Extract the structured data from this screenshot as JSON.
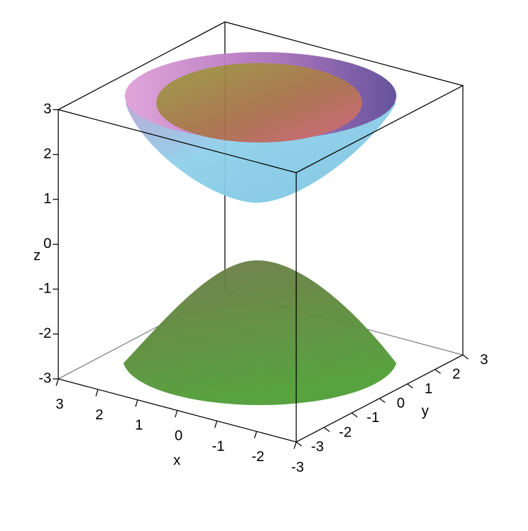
{
  "chart_data": {
    "type": "surface3d",
    "xlabel": "x",
    "ylabel": "y",
    "zlabel": "z",
    "xlim": [
      -3,
      3
    ],
    "ylim": [
      -3,
      3
    ],
    "zlim": [
      -3,
      3
    ],
    "xticks": [
      3,
      2,
      1,
      0,
      -1,
      -2,
      -3
    ],
    "yticks": [
      3,
      2,
      1,
      0,
      -1,
      -2,
      -3
    ],
    "zticks": [
      3,
      2,
      1,
      0,
      -1,
      -2,
      -3
    ]
  }
}
